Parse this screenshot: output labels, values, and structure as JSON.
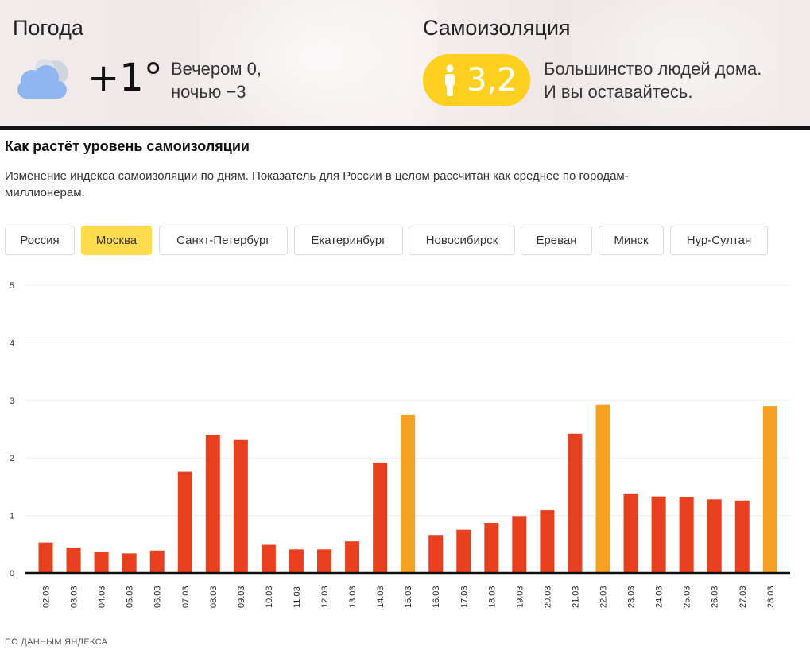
{
  "weather": {
    "title": "Погода",
    "icon": "cloud-icon",
    "temperature": "+1°",
    "desc_line1": "Вечером 0,",
    "desc_line2": "ночью −3"
  },
  "isolation": {
    "title": "Самоизоляция",
    "icon": "person-icon",
    "value": "3,2",
    "desc_line1": "Большинство людей дома.",
    "desc_line2": "И вы оставайтесь.",
    "badge_color": "#fdcf1e"
  },
  "section": {
    "title": "Как растёт уровень самоизоляции",
    "description": "Изменение индекса самоизоляции по дням. Показатель для России в целом рассчитан как среднее по городам-миллионерам."
  },
  "tabs": [
    {
      "label": "Россия",
      "active": false
    },
    {
      "label": "Москва",
      "active": true
    },
    {
      "label": "Санкт-Петербург",
      "active": false
    },
    {
      "label": "Екатеринбург",
      "active": false
    },
    {
      "label": "Новосибирск",
      "active": false
    },
    {
      "label": "Ереван",
      "active": false
    },
    {
      "label": "Минск",
      "active": false
    },
    {
      "label": "Нур-Султан",
      "active": false
    }
  ],
  "chart_data": {
    "type": "bar",
    "title": "",
    "xlabel": "",
    "ylabel": "",
    "ylim": [
      0,
      5
    ],
    "yticks": [
      "0",
      "1",
      "2",
      "3",
      "4",
      "5"
    ],
    "grid": true,
    "categories": [
      "02.03",
      "03.03",
      "04.03",
      "05.03",
      "06.03",
      "07.03",
      "08.03",
      "09.03",
      "10.03",
      "11.03",
      "12.03",
      "13.03",
      "14.03",
      "15.03",
      "16.03",
      "17.03",
      "18.03",
      "19.03",
      "20.03",
      "21.03",
      "22.03",
      "23.03",
      "24.03",
      "25.03",
      "26.03",
      "27.03",
      "28.03"
    ],
    "values": [
      0.53,
      0.44,
      0.37,
      0.34,
      0.39,
      1.76,
      2.4,
      2.31,
      0.49,
      0.41,
      0.41,
      0.55,
      1.92,
      2.75,
      0.66,
      0.75,
      0.87,
      0.99,
      1.09,
      2.42,
      2.92,
      1.37,
      1.33,
      1.32,
      1.28,
      1.26,
      2.9
    ],
    "highlight": [
      false,
      false,
      false,
      false,
      false,
      false,
      false,
      false,
      false,
      false,
      false,
      false,
      false,
      true,
      false,
      false,
      false,
      false,
      false,
      false,
      true,
      false,
      false,
      false,
      false,
      false,
      true
    ],
    "colors": {
      "bar": "#e8401f",
      "highlight": "#f5a124",
      "axis": "#111111",
      "grid": "#eeeeee"
    }
  },
  "footer": {
    "note": "ПО ДАННЫМ ЯНДЕКСА"
  }
}
